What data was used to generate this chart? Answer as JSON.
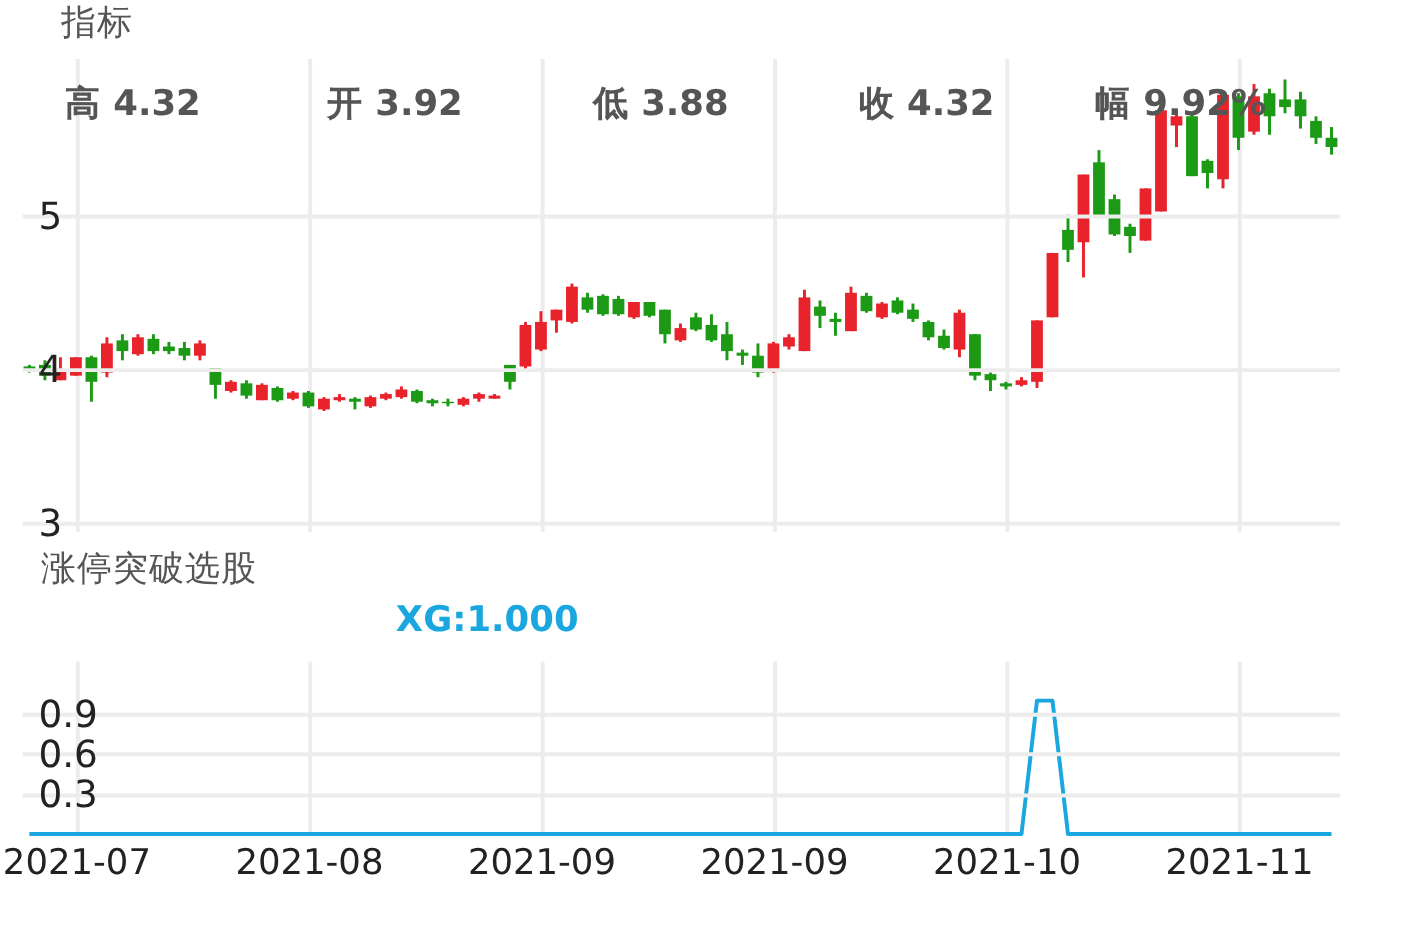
{
  "chart_data": [
    {
      "type": "candlestick",
      "title": "指标",
      "annotations": [
        "高 4.32",
        "开 3.92",
        "低 3.88",
        "收 4.32",
        "幅 9.92%"
      ],
      "categories": [
        null,
        null,
        null,
        "2021-07",
        null,
        null,
        null,
        null,
        null,
        null,
        null,
        null,
        null,
        null,
        null,
        null,
        null,
        null,
        "2021-08",
        null,
        null,
        null,
        null,
        null,
        null,
        null,
        null,
        null,
        null,
        null,
        null,
        null,
        null,
        "2021-09",
        null,
        null,
        null,
        null,
        null,
        null,
        null,
        null,
        null,
        null,
        null,
        null,
        null,
        null,
        "2021-09",
        null,
        null,
        null,
        null,
        null,
        null,
        null,
        null,
        null,
        null,
        null,
        null,
        null,
        null,
        "2021-10",
        null,
        null,
        null,
        null,
        null,
        null,
        null,
        null,
        null,
        null,
        null,
        null,
        null,
        null,
        "2021-11",
        null,
        null,
        null,
        null,
        null,
        null
      ],
      "ohlc": [
        [
          4.02,
          4.03,
          3.98,
          3.99
        ],
        [
          4.03,
          4.06,
          3.93,
          3.96
        ],
        [
          3.93,
          4.08,
          3.93,
          4.0
        ],
        [
          3.96,
          4.08,
          3.96,
          4.08
        ],
        [
          4.08,
          4.09,
          3.79,
          3.92
        ],
        [
          3.98,
          4.21,
          3.95,
          4.17
        ],
        [
          4.19,
          4.23,
          4.06,
          4.12
        ],
        [
          4.1,
          4.23,
          4.09,
          4.21
        ],
        [
          4.2,
          4.23,
          4.1,
          4.12
        ],
        [
          4.15,
          4.18,
          4.1,
          4.12
        ],
        [
          4.14,
          4.18,
          4.06,
          4.09
        ],
        [
          4.09,
          4.19,
          4.06,
          4.17
        ],
        [
          4.01,
          4.01,
          3.81,
          3.9
        ],
        [
          3.86,
          3.93,
          3.85,
          3.92
        ],
        [
          3.91,
          3.93,
          3.81,
          3.83
        ],
        [
          3.8,
          3.91,
          3.8,
          3.9
        ],
        [
          3.88,
          3.89,
          3.79,
          3.8
        ],
        [
          3.81,
          3.86,
          3.8,
          3.85
        ],
        [
          3.85,
          3.86,
          3.75,
          3.76
        ],
        [
          3.74,
          3.82,
          3.73,
          3.81
        ],
        [
          3.8,
          3.84,
          3.79,
          3.82
        ],
        [
          3.81,
          3.82,
          3.74,
          3.79
        ],
        [
          3.76,
          3.83,
          3.75,
          3.82
        ],
        [
          3.81,
          3.85,
          3.8,
          3.84
        ],
        [
          3.82,
          3.89,
          3.81,
          3.87
        ],
        [
          3.86,
          3.87,
          3.78,
          3.79
        ],
        [
          3.8,
          3.81,
          3.76,
          3.78
        ],
        [
          3.79,
          3.81,
          3.76,
          3.78
        ],
        [
          3.77,
          3.82,
          3.76,
          3.81
        ],
        [
          3.81,
          3.85,
          3.79,
          3.84
        ],
        [
          3.81,
          3.84,
          3.81,
          3.83
        ],
        [
          4.03,
          4.03,
          3.87,
          3.92
        ],
        [
          4.02,
          4.31,
          4.0,
          4.29
        ],
        [
          4.13,
          4.38,
          4.12,
          4.31
        ],
        [
          4.32,
          4.39,
          4.24,
          4.39
        ],
        [
          4.31,
          4.56,
          4.3,
          4.54
        ],
        [
          4.47,
          4.5,
          4.37,
          4.39
        ],
        [
          4.48,
          4.49,
          4.35,
          4.36
        ],
        [
          4.46,
          4.48,
          4.35,
          4.36
        ],
        [
          4.34,
          4.44,
          4.33,
          4.44
        ],
        [
          4.44,
          4.44,
          4.34,
          4.35
        ],
        [
          4.39,
          4.39,
          4.17,
          4.23
        ],
        [
          4.19,
          4.3,
          4.18,
          4.27
        ],
        [
          4.34,
          4.37,
          4.25,
          4.26
        ],
        [
          4.29,
          4.36,
          4.18,
          4.19
        ],
        [
          4.23,
          4.31,
          4.06,
          4.12
        ],
        [
          4.11,
          4.13,
          4.03,
          4.09
        ],
        [
          4.09,
          4.17,
          3.95,
          3.98
        ],
        [
          4.0,
          4.18,
          3.98,
          4.17
        ],
        [
          4.15,
          4.23,
          4.13,
          4.21
        ],
        [
          4.12,
          4.52,
          4.12,
          4.47
        ],
        [
          4.41,
          4.45,
          4.27,
          4.35
        ],
        [
          4.33,
          4.37,
          4.22,
          4.31
        ],
        [
          4.25,
          4.54,
          4.25,
          4.5
        ],
        [
          4.48,
          4.5,
          4.37,
          4.38
        ],
        [
          4.34,
          4.44,
          4.33,
          4.43
        ],
        [
          4.45,
          4.47,
          4.36,
          4.37
        ],
        [
          4.39,
          4.43,
          4.31,
          4.33
        ],
        [
          4.31,
          4.32,
          4.19,
          4.21
        ],
        [
          4.22,
          4.26,
          4.13,
          4.14
        ],
        [
          4.13,
          4.39,
          4.08,
          4.37
        ],
        [
          4.23,
          4.23,
          3.93,
          3.96
        ],
        [
          3.97,
          3.98,
          3.86,
          3.93
        ],
        [
          3.91,
          3.92,
          3.87,
          3.89
        ],
        [
          3.9,
          3.95,
          3.89,
          3.93
        ],
        [
          3.92,
          4.32,
          3.88,
          4.32
        ],
        [
          4.34,
          4.76,
          4.34,
          4.76
        ],
        [
          4.91,
          5.01,
          4.7,
          4.78
        ],
        [
          4.83,
          5.27,
          4.6,
          5.27
        ],
        [
          5.35,
          5.43,
          4.99,
          5.0
        ],
        [
          5.11,
          5.14,
          4.87,
          4.88
        ],
        [
          4.93,
          4.95,
          4.76,
          4.87
        ],
        [
          4.84,
          5.18,
          4.84,
          5.18
        ],
        [
          5.03,
          5.69,
          5.03,
          5.69
        ],
        [
          5.59,
          5.69,
          5.45,
          5.65
        ],
        [
          5.65,
          5.67,
          5.26,
          5.26
        ],
        [
          5.36,
          5.37,
          5.18,
          5.28
        ],
        [
          5.24,
          5.79,
          5.18,
          5.79
        ],
        [
          5.78,
          5.8,
          5.43,
          5.51
        ],
        [
          5.55,
          5.86,
          5.53,
          5.78
        ],
        [
          5.8,
          5.83,
          5.53,
          5.65
        ],
        [
          5.76,
          5.89,
          5.67,
          5.71
        ],
        [
          5.76,
          5.81,
          5.57,
          5.65
        ],
        [
          5.62,
          5.65,
          5.47,
          5.51
        ],
        [
          5.51,
          5.58,
          5.4,
          5.45
        ]
      ],
      "colors": [
        "#1c9a16",
        "#1c9a16",
        "#e8232b",
        "#e8232b",
        "#1c9a16",
        "#e8232b",
        "#1c9a16",
        "#e8232b",
        "#1c9a16",
        "#1c9a16",
        "#1c9a16",
        "#e8232b",
        "#1c9a16",
        "#e8232b",
        "#1c9a16",
        "#e8232b",
        "#1c9a16",
        "#e8232b",
        "#1c9a16",
        "#e8232b",
        "#e8232b",
        "#1c9a16",
        "#e8232b",
        "#e8232b",
        "#e8232b",
        "#1c9a16",
        "#1c9a16",
        "#1c9a16",
        "#e8232b",
        "#e8232b",
        "#e8232b",
        "#1c9a16",
        "#e8232b",
        "#e8232b",
        "#e8232b",
        "#e8232b",
        "#1c9a16",
        "#1c9a16",
        "#1c9a16",
        "#e8232b",
        "#1c9a16",
        "#1c9a16",
        "#e8232b",
        "#1c9a16",
        "#1c9a16",
        "#1c9a16",
        "#1c9a16",
        "#1c9a16",
        "#e8232b",
        "#e8232b",
        "#e8232b",
        "#1c9a16",
        "#1c9a16",
        "#e8232b",
        "#1c9a16",
        "#e8232b",
        "#1c9a16",
        "#1c9a16",
        "#1c9a16",
        "#1c9a16",
        "#e8232b",
        "#1c9a16",
        "#1c9a16",
        "#1c9a16",
        "#e8232b",
        "#e8232b",
        "#e8232b",
        "#1c9a16",
        "#e8232b",
        "#1c9a16",
        "#1c9a16",
        "#1c9a16",
        "#e8232b",
        "#e8232b",
        "#e8232b",
        "#1c9a16",
        "#1c9a16",
        "#e8232b",
        "#1c9a16",
        "#e8232b",
        "#1c9a16",
        "#1c9a16",
        "#1c9a16",
        "#1c9a16",
        "#1c9a16"
      ],
      "ylim": [
        2.95,
        6.03
      ],
      "yticks": [
        3,
        4,
        5
      ],
      "grid": true,
      "tick_labels": "y"
    },
    {
      "type": "line",
      "title": "涨停突破选股",
      "annotations": [
        "XG:1.000"
      ],
      "categories": [
        null,
        null,
        null,
        "2021-07",
        null,
        null,
        null,
        null,
        null,
        null,
        null,
        null,
        null,
        null,
        null,
        null,
        null,
        null,
        "2021-08",
        null,
        null,
        null,
        null,
        null,
        null,
        null,
        null,
        null,
        null,
        null,
        null,
        null,
        null,
        "2021-09",
        null,
        null,
        null,
        null,
        null,
        null,
        null,
        null,
        null,
        null,
        null,
        null,
        null,
        null,
        "2021-09",
        null,
        null,
        null,
        null,
        null,
        null,
        null,
        null,
        null,
        null,
        null,
        null,
        null,
        null,
        "2021-10",
        null,
        null,
        null,
        null,
        null,
        null,
        null,
        null,
        null,
        null,
        null,
        null,
        null,
        null,
        "2021-11",
        null,
        null,
        null,
        null,
        null,
        null
      ],
      "series": [
        {
          "color": "#1aa7e0",
          "values": [
            0,
            0,
            0,
            0,
            0,
            0,
            0,
            0,
            0,
            0,
            0,
            0,
            0,
            0,
            0,
            0,
            0,
            0,
            0,
            0,
            0,
            0,
            0,
            0,
            0,
            0,
            0,
            0,
            0,
            0,
            0,
            0,
            0,
            0,
            0,
            0,
            0,
            0,
            0,
            0,
            0,
            0,
            0,
            0,
            0,
            0,
            0,
            0,
            0,
            0,
            0,
            0,
            0,
            0,
            0,
            0,
            0,
            0,
            0,
            0,
            0,
            0,
            0,
            0,
            0,
            1,
            1,
            0,
            0,
            0,
            0,
            0,
            0,
            0,
            0,
            0,
            0,
            0,
            0,
            0,
            0,
            0,
            0,
            0,
            0
          ]
        }
      ],
      "ylim": [
        0,
        1.3
      ],
      "yticks": [
        0.3,
        0.6,
        0.9
      ],
      "grid": true
    }
  ]
}
